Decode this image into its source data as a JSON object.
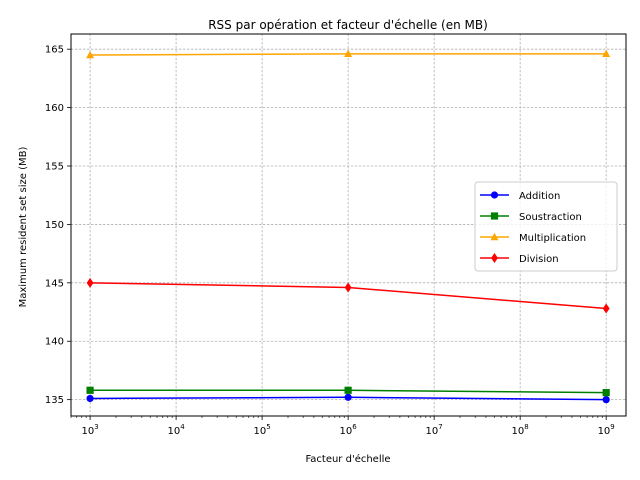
{
  "chart_data": {
    "type": "line",
    "title": "RSS par opération et facteur d'échelle (en MB)",
    "xlabel": "Facteur d'échelle",
    "ylabel": "Maximum resident set size (MB)",
    "xscale": "log",
    "xlim": [
      600,
      1700000000.0
    ],
    "ylim": [
      133.6,
      166.3
    ],
    "grid": true,
    "legend_position": "center-right",
    "x": [
      1000,
      1000000,
      1000000000
    ],
    "x_ticks": [
      {
        "value": 1000,
        "base": "10",
        "exp": "3"
      },
      {
        "value": 10000,
        "base": "10",
        "exp": "4"
      },
      {
        "value": 100000,
        "base": "10",
        "exp": "5"
      },
      {
        "value": 1000000,
        "base": "10",
        "exp": "6"
      },
      {
        "value": 10000000,
        "base": "10",
        "exp": "7"
      },
      {
        "value": 100000000,
        "base": "10",
        "exp": "8"
      },
      {
        "value": 1000000000,
        "base": "10",
        "exp": "9"
      }
    ],
    "y_ticks": [
      {
        "value": 135,
        "label": "135"
      },
      {
        "value": 140,
        "label": "140"
      },
      {
        "value": 145,
        "label": "145"
      },
      {
        "value": 150,
        "label": "150"
      },
      {
        "value": 155,
        "label": "155"
      },
      {
        "value": 160,
        "label": "160"
      },
      {
        "value": 165,
        "label": "165"
      }
    ],
    "series": [
      {
        "name": "Addition",
        "color": "#0000ff",
        "marker": "circle",
        "values": [
          135.1,
          135.2,
          135.0
        ]
      },
      {
        "name": "Soustraction",
        "color": "#008000",
        "marker": "square",
        "values": [
          135.8,
          135.8,
          135.6
        ]
      },
      {
        "name": "Multiplication",
        "color": "#ffa500",
        "marker": "triangle",
        "values": [
          164.5,
          164.6,
          164.6
        ]
      },
      {
        "name": "Division",
        "color": "#ff0000",
        "marker": "diamond",
        "values": [
          145.0,
          144.6,
          142.8
        ]
      }
    ]
  }
}
